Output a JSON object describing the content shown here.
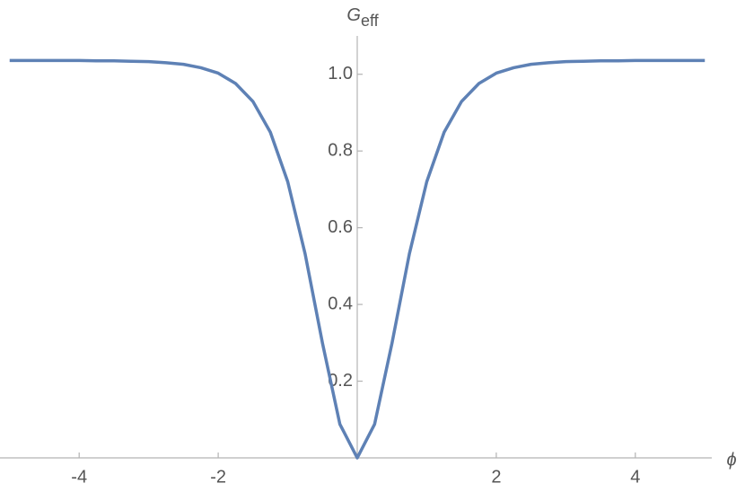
{
  "chart_data": {
    "type": "line",
    "xlabel": "ϕ",
    "ylabel": {
      "main": "G",
      "sub": "eff"
    },
    "x": [
      -5,
      -4.75,
      -4.5,
      -4.25,
      -4,
      -3.75,
      -3.5,
      -3.25,
      -3,
      -2.75,
      -2.5,
      -2.25,
      -2,
      -1.75,
      -1.5,
      -1.25,
      -1,
      -0.75,
      -0.5,
      -0.25,
      0,
      0.25,
      0.5,
      0.75,
      1,
      1.25,
      1.5,
      1.75,
      2,
      2.25,
      2.5,
      2.75,
      3,
      3.25,
      3.5,
      3.75,
      4,
      4.25,
      4.5,
      4.75,
      5
    ],
    "series": [
      {
        "color": "#5e81b5",
        "values": [
          1.036,
          1.036,
          1.036,
          1.036,
          1.036,
          1.035,
          1.035,
          1.034,
          1.033,
          1.03,
          1.026,
          1.017,
          1.003,
          0.976,
          0.929,
          0.849,
          0.72,
          0.532,
          0.299,
          0.088,
          0,
          0.088,
          0.299,
          0.532,
          0.72,
          0.849,
          0.929,
          0.976,
          1.003,
          1.017,
          1.026,
          1.03,
          1.033,
          1.034,
          1.035,
          1.035,
          1.036,
          1.036,
          1.036,
          1.036,
          1.036
        ]
      }
    ],
    "xlim": [
      -5.1,
      5.1
    ],
    "ylim": [
      0,
      1.1
    ],
    "xticks": [
      -4,
      -2,
      2,
      4
    ],
    "yticks": [
      0.2,
      0.4,
      0.6,
      0.8,
      {
        "value": 1,
        "label": "1.0"
      }
    ]
  }
}
